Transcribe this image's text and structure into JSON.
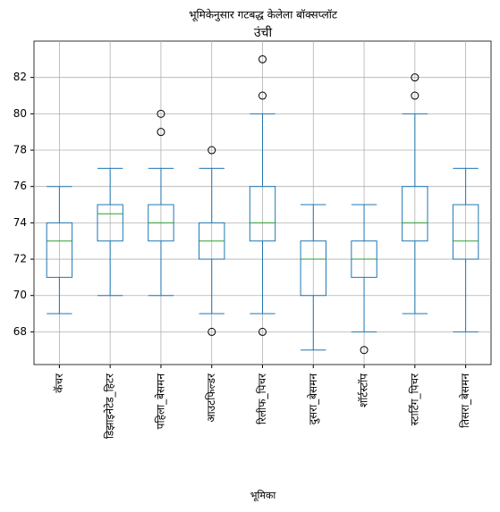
{
  "chart_data": {
    "type": "boxplot",
    "suptitle": "भूमिकेनुसार गटबद्ध केलेला बॉक्सप्लॉट",
    "title": "उंची",
    "x_label": "भूमिका",
    "categories": [
      "कॅचर",
      "डिझाइनेटेड_हिटर",
      "पहिला_बेसमन",
      "आउटफिल्डर",
      "रिलीफ_पिचर",
      "दुसरा_बेसमन",
      "शॉर्टस्टॉप",
      "स्टार्टिंग_पिचर",
      "तिसरा_बेसमन"
    ],
    "boxes": [
      {
        "whislo": 69,
        "q1": 71,
        "med": 73,
        "q3": 74,
        "whishi": 76,
        "fliers": []
      },
      {
        "whislo": 70,
        "q1": 73,
        "med": 74.5,
        "q3": 75,
        "whishi": 77,
        "fliers": []
      },
      {
        "whislo": 70,
        "q1": 73,
        "med": 74,
        "q3": 75,
        "whishi": 77,
        "fliers": [
          79,
          80
        ]
      },
      {
        "whislo": 69,
        "q1": 72,
        "med": 73,
        "q3": 74,
        "whishi": 77,
        "fliers": [
          68,
          78
        ]
      },
      {
        "whislo": 69,
        "q1": 73,
        "med": 74,
        "q3": 76,
        "whishi": 80,
        "fliers": [
          68,
          81,
          83
        ]
      },
      {
        "whislo": 67,
        "q1": 70,
        "med": 72,
        "q3": 73,
        "whishi": 75,
        "fliers": []
      },
      {
        "whislo": 68,
        "q1": 71,
        "med": 72,
        "q3": 73,
        "whishi": 75,
        "fliers": [
          67
        ]
      },
      {
        "whislo": 69,
        "q1": 73,
        "med": 74,
        "q3": 76,
        "whishi": 80,
        "fliers": [
          81,
          82
        ]
      },
      {
        "whislo": 68,
        "q1": 72,
        "med": 73,
        "q3": 75,
        "whishi": 77,
        "fliers": []
      }
    ],
    "box_color": "#1f77b4",
    "median_color": "#2ca02c",
    "ylim": [
      66.2,
      84
    ],
    "yticks": [
      68,
      70,
      72,
      74,
      76,
      78,
      80,
      82
    ],
    "grid": true
  }
}
